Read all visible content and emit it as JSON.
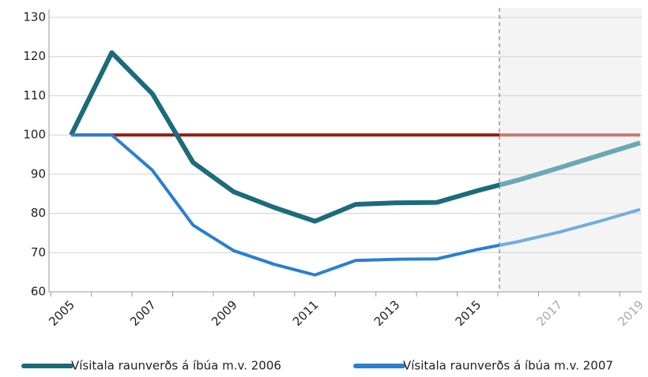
{
  "chart_data": {
    "type": "line",
    "categories": [
      "2005",
      null,
      "2007",
      null,
      "2009",
      null,
      "2011",
      null,
      "2013",
      null,
      "2015",
      null,
      "2017",
      null,
      "2019"
    ],
    "series": [
      {
        "name": "Vísitala raunverðs á íbúa m.v. 2006",
        "color": "#1c6b7c",
        "values": [
          100,
          121,
          110.5,
          93,
          85.5,
          81.5,
          78,
          82.3,
          82.7,
          82.8,
          85.8,
          88.5,
          91.6,
          94.8,
          98
        ]
      },
      {
        "name": "Vísitala raunverðs á íbúa m.v. 2007",
        "color": "#2a7fd0",
        "values": [
          100,
          100,
          91,
          77,
          70.5,
          67,
          64.3,
          68,
          68.3,
          68.4,
          70.8,
          72.8,
          75.2,
          78,
          81
        ]
      },
      {
        "color": "#9b1a12",
        "values": [
          100,
          100,
          100,
          100,
          100,
          100,
          100,
          100,
          100,
          100,
          100,
          100,
          100,
          100,
          100
        ]
      }
    ],
    "ylim": [
      60,
      130
    ],
    "yticks": [
      60,
      70,
      80,
      90,
      100,
      110,
      120,
      130
    ],
    "grid": true
  }
}
